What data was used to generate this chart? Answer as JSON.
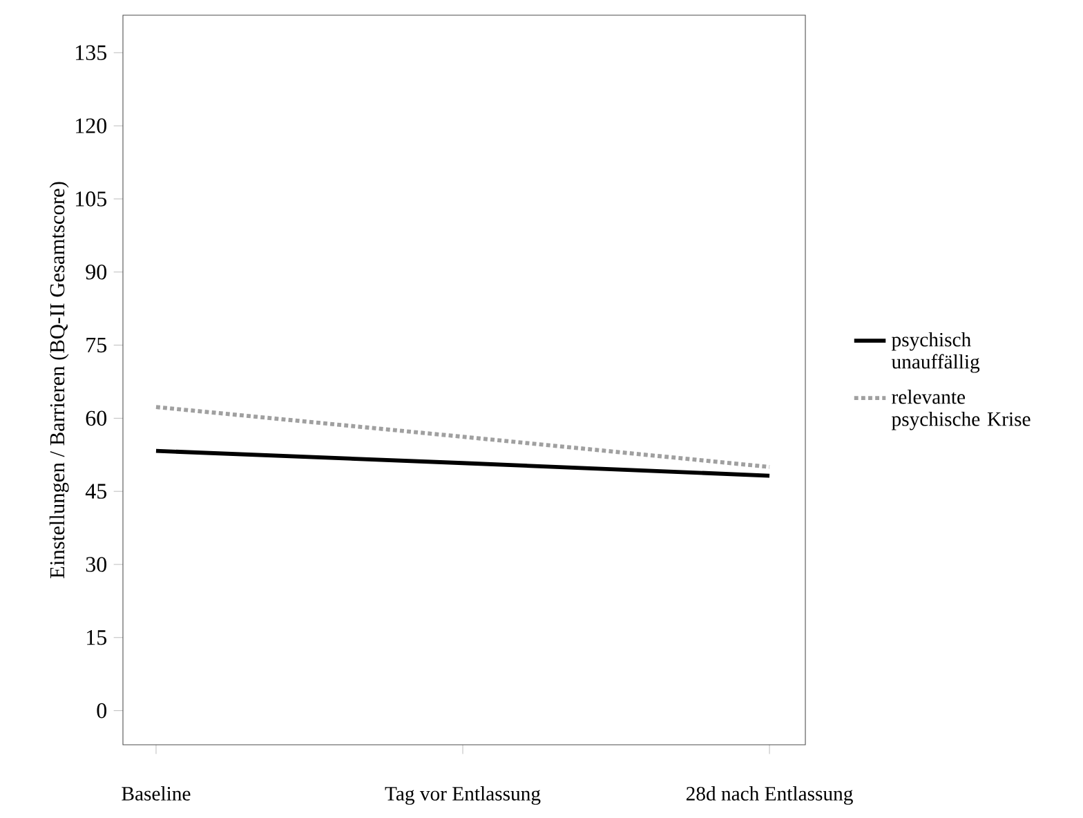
{
  "chart_data": {
    "type": "line",
    "ylabel": "Einstellungen / Barrieren (BQ-II Gesamtscore)",
    "categories": [
      "Baseline",
      "Tag vor Entlassung",
      "28d nach Entlassung"
    ],
    "ylim": [
      -7,
      142.7
    ],
    "yticks": [
      0,
      15,
      30,
      45,
      60,
      75,
      90,
      105,
      120,
      135
    ],
    "legend": "right",
    "grid": false,
    "series": [
      {
        "name": "psychisch unauffällig",
        "color": "#000000",
        "line_style": "solid",
        "values": [
          53.3,
          50.8,
          48.2
        ]
      },
      {
        "name": "relevante psychische Krise",
        "color": "#a0a0a0",
        "line_style": "dotted",
        "values": [
          62.3,
          56.2,
          50.0
        ]
      }
    ]
  }
}
